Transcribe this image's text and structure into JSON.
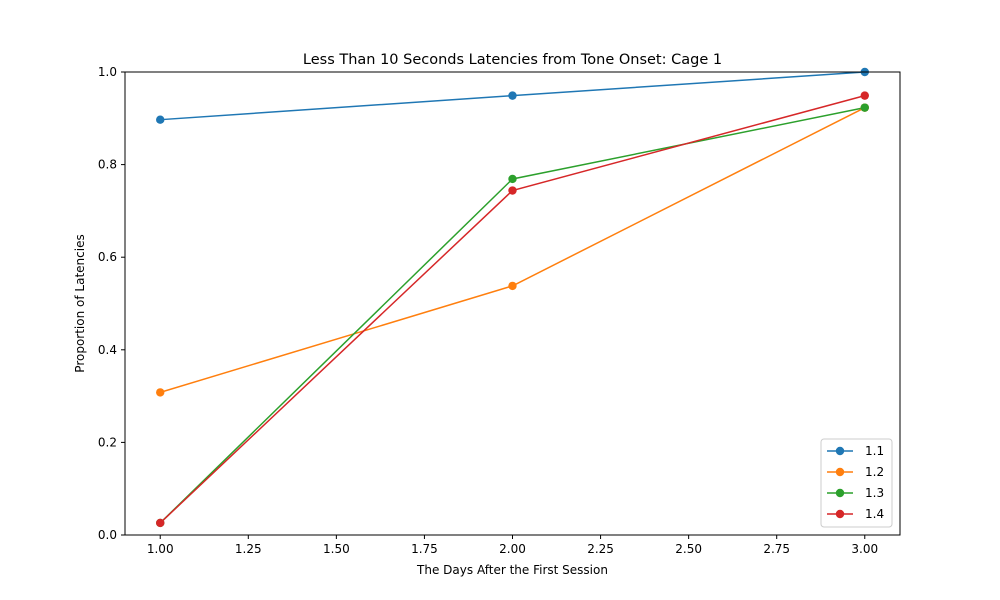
{
  "chart_data": {
    "type": "line",
    "title": "Less Than 10 Seconds Latencies from Tone Onset: Cage 1",
    "xlabel": "The Days After the First Session",
    "ylabel": "Proportion of Latencies",
    "xlim": [
      0.9,
      3.1
    ],
    "ylim": [
      0.0,
      1.0
    ],
    "xticks": [
      "1.00",
      "1.25",
      "1.50",
      "1.75",
      "2.00",
      "2.25",
      "2.50",
      "2.75",
      "3.00"
    ],
    "yticks": [
      "0.0",
      "0.2",
      "0.4",
      "0.6",
      "0.8",
      "1.0"
    ],
    "grid": false,
    "legend_position": "lower-right",
    "x": [
      1,
      2,
      3
    ],
    "series": [
      {
        "name": "1.1",
        "color": "#1f77b4",
        "values": [
          0.897,
          0.949,
          1.0
        ]
      },
      {
        "name": "1.2",
        "color": "#ff7f0e",
        "values": [
          0.308,
          0.538,
          0.923
        ]
      },
      {
        "name": "1.3",
        "color": "#2ca02c",
        "values": [
          0.026,
          0.769,
          0.923
        ]
      },
      {
        "name": "1.4",
        "color": "#d62728",
        "values": [
          0.026,
          0.744,
          0.949
        ]
      }
    ]
  }
}
